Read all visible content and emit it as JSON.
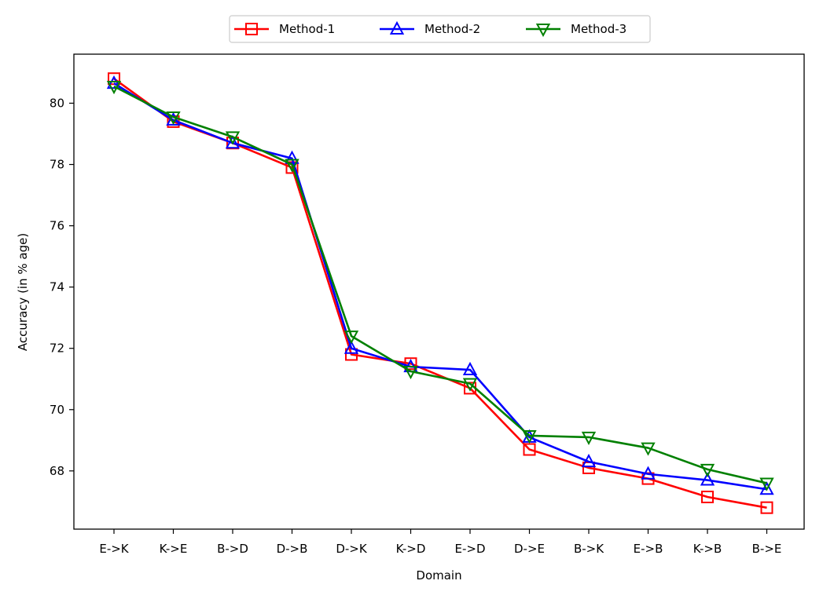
{
  "chart_data": {
    "type": "line",
    "title": "",
    "xlabel": "Domain",
    "ylabel": "Accuracy (in % age)",
    "categories": [
      "E->K",
      "K->E",
      "B->D",
      "D->B",
      "D->K",
      "K->D",
      "E->D",
      "D->E",
      "B->K",
      "E->B",
      "K->B",
      "B->E"
    ],
    "ylim": [
      66.1,
      81.6
    ],
    "yticks": [
      68,
      70,
      72,
      74,
      76,
      78,
      80
    ],
    "grid": false,
    "legend_position": "top-center, outside plot",
    "series": [
      {
        "name": "Method-1",
        "color": "#ff0000",
        "marker": "square",
        "values": [
          80.8,
          79.4,
          78.7,
          77.9,
          71.8,
          71.5,
          70.7,
          68.7,
          68.1,
          67.75,
          67.15,
          66.8
        ]
      },
      {
        "name": "Method-2",
        "color": "#0000ff",
        "marker": "triangle-up",
        "values": [
          80.65,
          79.45,
          78.7,
          78.2,
          72.0,
          71.4,
          71.3,
          69.1,
          68.3,
          67.9,
          67.7,
          67.4
        ]
      },
      {
        "name": "Method-3",
        "color": "#008000",
        "marker": "triangle-down",
        "values": [
          80.55,
          79.55,
          78.9,
          78.0,
          72.4,
          71.25,
          70.85,
          69.15,
          69.1,
          68.75,
          68.05,
          67.6
        ]
      }
    ]
  }
}
